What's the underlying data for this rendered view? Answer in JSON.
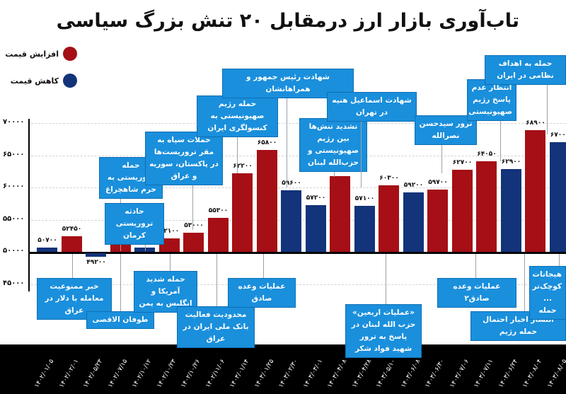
{
  "title": "تاب‌آوری بازار ارز درمقابل ۲۰ تنش بزرگ سیاسی",
  "legend": [
    {
      "label": "افزایش قیمت",
      "color": "#a50f15"
    },
    {
      "label": "کاهش قیمت",
      "color": "#13337a"
    }
  ],
  "yaxis": {
    "ticks": [
      "۷۰۰۰۰",
      "۶۵۰۰۰",
      "۶۰۰۰۰",
      "۵۵۰۰۰",
      "۵۰۰۰۰",
      "۴۵۰۰۰"
    ]
  },
  "annotations": [
    "خبر ممنوعیت معامله با دلار در عراق",
    "طوفان الاقصی",
    "حمله تروریستی به حرم شاهچراغ",
    "حادثه تروریستی کرمان",
    "حمله شدید آمریکا و انگلیس به یمن",
    "حملات سپاه به مقر تروریست‌ها در پاکستان، سوریه و عراق",
    "محدودیت فعالیت بانک ملی ایران در عراق",
    "حمله رژیم صهیونیستی به کنسولگری ایران",
    "عملیات وعده صادق",
    "شهادت رئیس جمهور و همراهانشان",
    "تشدید تنش‌ها بین رژیم صهیونیستی و حزب‌الله لبنان",
    "شهادت اسماعیل هنیه در تهران",
    "«عملیات اربعین» حزب الله لبنان در پاسخ به ترور شهید فواد شکر",
    "ترور سیدحسن نصرالله",
    "عملیات وعده صادق۲",
    "انتظار عدم پاسخ رژیم صهیونیستی",
    "انتشار اخبار احتمال حمله رژیم",
    "حمله به اهداف نظامی در ایران",
    "هیجانات کوچک‌تر ... حمله"
  ],
  "chart_data": {
    "type": "bar",
    "title": "تاب‌آوری بازار ارز درمقابل ۲۰ تنش بزرگ سیاسی",
    "xlabel": "",
    "ylabel": "",
    "ylim": [
      45000,
      70000
    ],
    "grid": true,
    "legend_position": "top-left",
    "categories": [
      "۱۴۰۲/۰۱/۰۵",
      "۱۴۰۲/۰۲/۰۱",
      "۱۴۰۲/۰۵/۲۳",
      "۱۴۰۲/۰۷/۱۵",
      "۱۴۰۲/۱۰/۱۲",
      "۱۴۰۲/۱۰/۲۳",
      "۱۴۰۲/۱۰/۲۶",
      "۱۴۰۲/۱۱/۰۶",
      "۱۴۰۳/۰۱/۱۴",
      "۱۴۰۳/۰۱/۲۵",
      "۱۴۰۳/۰۲/۳۰",
      "۱۴۰۳/۰۳/۰۱",
      "۱۴۰۳/۰۴/۰۸",
      "۱۴۰۳/۰۴/۲۸",
      "۱۴۰۳/۰۵/۱۰",
      "۱۴۰۳/۰۶/۰۸",
      "۱۴۰۳/۰۶/۳۰",
      "۱۴۰۳/۰۷/۰۶",
      "۱۴۰۳/۰۷/۱۱",
      "۱۴۰۳/۰۶/۲۴",
      "۱۴۰۳/۰۸/۰۴",
      "۱۴۰۳/۰۸/۰۵"
    ],
    "values": [
      50700,
      52450,
      49200,
      51100,
      50700,
      52100,
      53000,
      55300,
      62200,
      65800,
      59600,
      57200,
      61800,
      57100,
      60300,
      59200,
      59700,
      62700,
      64050,
      62900,
      68900,
      67000
    ],
    "value_labels": [
      "۵۰۷۰۰",
      "۵۲۴۵۰",
      "۴۹۲۰۰",
      "۵۱۱۰۰",
      "۵۰۷۰۰",
      "۵۲۱۰۰",
      "۵۳۰۰۰",
      "۵۵۳۰۰",
      "۶۲۲۰۰",
      "۶۵۸۰۰",
      "۵۹۶۰۰",
      "۵۷۲۰۰",
      "۶۱۸۰۰",
      "۵۷۱۰۰",
      "۶۰۳۰۰",
      "۵۹۲۰۰",
      "۵۹۷۰۰",
      "۶۲۷۰۰",
      "۶۴۰۵۰",
      "۶۲۹۰۰",
      "۶۸۹۰۰",
      "۶۷۰۰۰"
    ],
    "direction": [
      "down",
      "up",
      "down",
      "up",
      "down",
      "up",
      "up",
      "up",
      "up",
      "up",
      "down",
      "down",
      "up",
      "down",
      "up",
      "down",
      "up",
      "up",
      "up",
      "down",
      "up",
      "down"
    ],
    "series": [
      {
        "name": "افزایش قیمت",
        "color": "#a50f15"
      },
      {
        "name": "کاهش قیمت",
        "color": "#13337a"
      }
    ]
  }
}
